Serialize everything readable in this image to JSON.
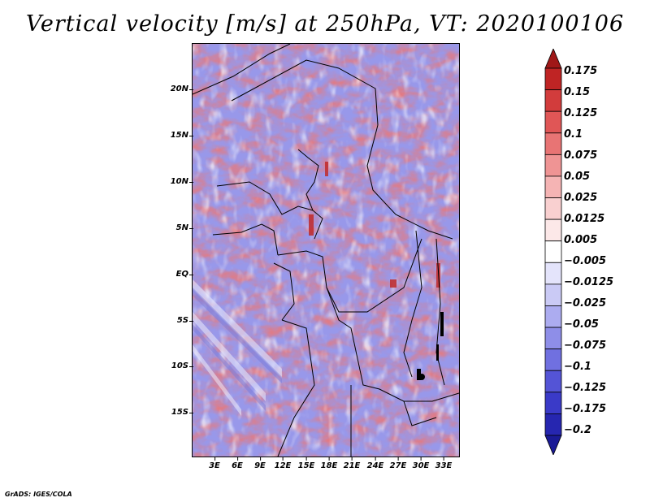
{
  "title": "Vertical velocity [m/s] at 250hPa, VT: 2020100106",
  "credit": "GrADS: IGES/COLA",
  "lat_labels": [
    "20N",
    "15N",
    "10N",
    "5N",
    "EQ",
    "5S",
    "10S",
    "15S"
  ],
  "lon_labels": [
    "3E",
    "6E",
    "9E",
    "12E",
    "15E",
    "18E",
    "21E",
    "24E",
    "27E",
    "30E",
    "33E"
  ],
  "colorbar": {
    "labels": [
      "0.175",
      "0.15",
      "0.125",
      "0.1",
      "0.075",
      "0.05",
      "0.025",
      "0.0125",
      "0.005",
      "−0.005",
      "−0.0125",
      "−0.025",
      "−0.05",
      "−0.075",
      "−0.1",
      "−0.125",
      "−0.175",
      "−0.2"
    ],
    "colors": [
      "#a01818",
      "#bf2424",
      "#d23c3c",
      "#e05656",
      "#e87474",
      "#ef9494",
      "#f5b4b4",
      "#f9d0d0",
      "#fce8e8",
      "#ffffff",
      "#e4e4fb",
      "#cacaf5",
      "#acacf0",
      "#8e8ee8",
      "#7070e0",
      "#5454d6",
      "#3a3ac8",
      "#2626b0",
      "#1a1a96"
    ]
  }
}
